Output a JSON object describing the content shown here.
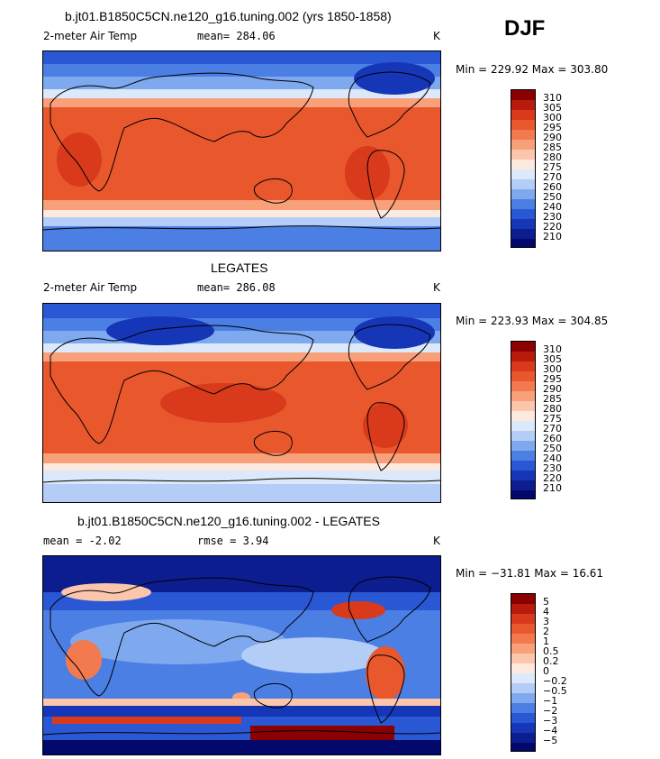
{
  "header": {
    "season": "DJF"
  },
  "panels": [
    {
      "title": "b.jt01.B1850C5CN.ne120_g16.tuning.002 (yrs 1850-1858)",
      "variable": "2-meter Air Temp",
      "mean_label": "mean= 284.06",
      "units": "K",
      "minmax": "Min = 229.92 Max = 303.80",
      "colorbar_labels": [
        "310",
        "305",
        "300",
        "295",
        "290",
        "285",
        "280",
        "275",
        "270",
        "260",
        "250",
        "240",
        "230",
        "220",
        "210"
      ]
    },
    {
      "title": "LEGATES",
      "variable": "2-meter Air Temp",
      "mean_label": "mean= 286.08",
      "units": "K",
      "minmax": "Min = 223.93 Max = 304.85",
      "colorbar_labels": [
        "310",
        "305",
        "300",
        "295",
        "290",
        "285",
        "280",
        "275",
        "270",
        "260",
        "250",
        "240",
        "230",
        "220",
        "210"
      ]
    },
    {
      "title": "b.jt01.B1850C5CN.ne120_g16.tuning.002 - LEGATES",
      "mean_label": "mean =   -2.02",
      "rmse_label": "rmse =    3.94",
      "units": "K",
      "minmax": "Min = −31.81 Max =  16.61",
      "colorbar_labels": [
        "5",
        "4",
        "3",
        "2",
        "1",
        "0.5",
        "0.2",
        "0",
        "−0.2",
        "−0.5",
        "−1",
        "−2",
        "−3",
        "−4",
        "−5"
      ]
    }
  ],
  "colors": {
    "abs_scale": [
      "#8b0000",
      "#b81a0c",
      "#d93a1c",
      "#e9572d",
      "#f37a4f",
      "#f8a07a",
      "#fcc6ac",
      "#fde9de",
      "#dce9fb",
      "#b3cdf7",
      "#7ea9ef",
      "#4b7fe3",
      "#2a58d4",
      "#1636b8",
      "#0b1d8f",
      "#03086b"
    ],
    "diff_scale": [
      "#8b0000",
      "#b81a0c",
      "#d93a1c",
      "#e9572d",
      "#f37a4f",
      "#f8a07a",
      "#fcc6ac",
      "#fde9de",
      "#dce9fb",
      "#b3cdf7",
      "#7ea9ef",
      "#4b7fe3",
      "#2a58d4",
      "#1636b8",
      "#0b1d8f",
      "#03086b"
    ]
  }
}
